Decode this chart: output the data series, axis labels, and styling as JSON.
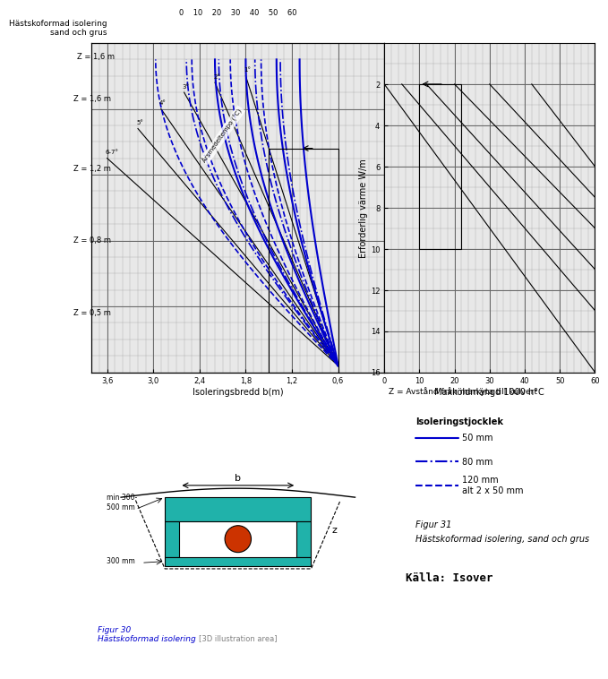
{
  "title_left": "Hästskoformad isolering\nsand och grus",
  "top_chart": {
    "xlabel_top": "Z = 1,6 m",
    "x_top_ticks": [
      0,
      10,
      20,
      30,
      40,
      50,
      60
    ],
    "x_left_ticks": [
      3.6,
      3.0,
      2.4,
      1.8,
      1.2,
      0.6
    ],
    "xlabel_bottom": "Isoleringsbredd b(m)",
    "z_labels": [
      "Z = 1,6 m",
      "Z = 1,2 m",
      "Z = 0,8 m",
      "Z = 0,5 m"
    ],
    "armedel_labels": [
      "1°",
      "2°",
      "3°",
      "4°",
      "5°",
      "6-7°"
    ],
    "armedel_text": "Årsmedeltempo (°C)"
  },
  "right_chart": {
    "ylabel": "Erforderlig värme W/m",
    "xlabel": "Maxköldmängd 1000 h°C",
    "y_ticks": [
      2,
      4,
      6,
      8,
      10,
      12,
      14,
      16
    ],
    "x_ticks": [
      0,
      10,
      20,
      30,
      40,
      50,
      60
    ]
  },
  "note": "Z = Avstånd från markyta till kulvert",
  "legend_title": "Isoleringstjocklek",
  "legend_items": [
    {
      "label": "50 mm",
      "style": "solid"
    },
    {
      "label": "80 mm",
      "style": "dashdot"
    },
    {
      "label": "120 mm\nalt 2 x 50 mm",
      "style": "dashed"
    }
  ],
  "fig31_title": "Figur 31",
  "fig31_subtitle": "Hästskoformad isolering, sand och grus",
  "fig30_label": "Figur 30\nHästskoformad isolering",
  "source": "Källa: Isover",
  "blue_color": "#0000CD",
  "black_color": "#000000",
  "grid_color": "#999999",
  "bg_color": "#ffffff"
}
